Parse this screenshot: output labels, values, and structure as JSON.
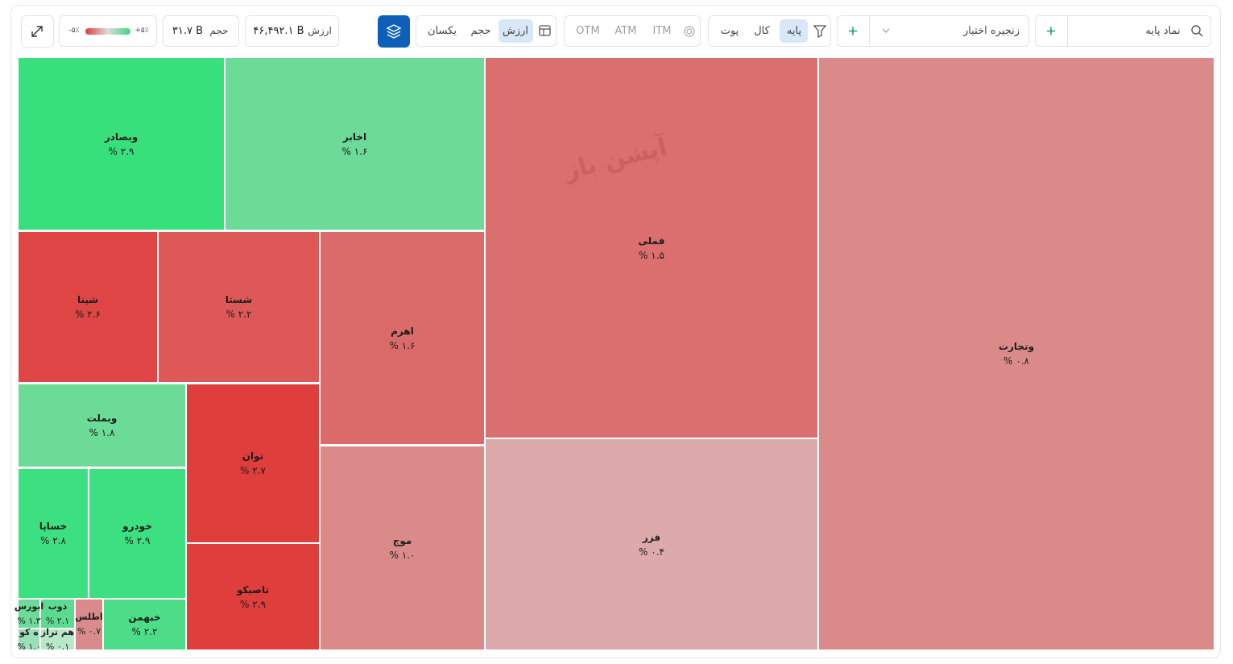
{
  "toolbar": {
    "search_placeholder": "نماد پایه",
    "chain_select": "زنجیره اختیار",
    "option_types": [
      "پایه",
      "کال",
      "پوت"
    ],
    "moneyness": [
      "ITM",
      "ATM",
      "OTM"
    ],
    "size_by": [
      "ارزش",
      "حجم",
      "یکسان"
    ],
    "value_label": "ارزش",
    "value": "۴۶,۴۹۲.۱ B",
    "volume_label": "حجم",
    "volume": "۳۱.۷ B",
    "legend_min": "-۵٪",
    "legend_max": "+۵٪"
  },
  "watermark": "آپشن باز",
  "treemap": {
    "tiles": [
      {
        "name": "وتجارت",
        "change": "% ۰.۸"
      },
      {
        "name": "فملی",
        "change": "% ۱.۵"
      },
      {
        "name": "فزر",
        "change": "% ۰.۴"
      },
      {
        "name": "اخابر",
        "change": "% ۱.۶"
      },
      {
        "name": "وبصادر",
        "change": "% ۲.۹"
      },
      {
        "name": "شپنا",
        "change": "% ۲.۶"
      },
      {
        "name": "شستا",
        "change": "% ۲.۲"
      },
      {
        "name": "اهرم",
        "change": "% ۱.۶"
      },
      {
        "name": "موج",
        "change": "% ۱.۰"
      },
      {
        "name": "وبملت",
        "change": "% ۱.۸"
      },
      {
        "name": "توان",
        "change": "% ۲.۷"
      },
      {
        "name": "تاصیکو",
        "change": "% ۲.۹"
      },
      {
        "name": "خساپا",
        "change": "% ۲.۸"
      },
      {
        "name": "خودرو",
        "change": "% ۲.۹"
      },
      {
        "name": "خبهمن",
        "change": "% ۲.۲"
      },
      {
        "name": "اطلس",
        "change": "% ۰.۷"
      },
      {
        "name": "ذوب",
        "change": "% ۲.۱"
      },
      {
        "name": "هم تراز",
        "change": "% ۰.۱"
      },
      {
        "name": "ابورس",
        "change": "% ۱.۳"
      },
      {
        "name": "ه کو",
        "change": "% ۱.۰"
      }
    ]
  }
}
